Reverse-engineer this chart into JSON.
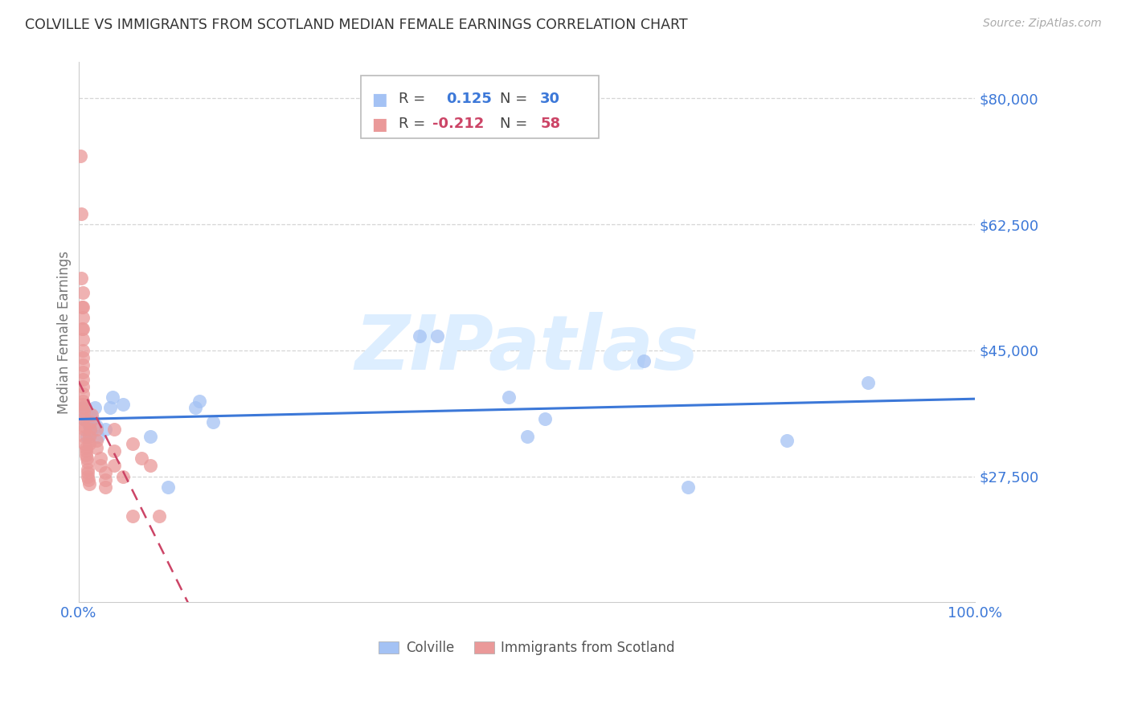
{
  "title": "COLVILLE VS IMMIGRANTS FROM SCOTLAND MEDIAN FEMALE EARNINGS CORRELATION CHART",
  "source": "Source: ZipAtlas.com",
  "ylabel": "Median Female Earnings",
  "ylim": [
    10000,
    85000
  ],
  "xlim": [
    0.0,
    1.0
  ],
  "watermark": "ZIPatlas",
  "blue_color": "#a4c2f4",
  "pink_color": "#ea9999",
  "blue_line_color": "#3c78d8",
  "pink_line_color": "#cc4466",
  "pink_line_dash": [
    6,
    4
  ],
  "colville_points": [
    [
      0.004,
      37000
    ],
    [
      0.005,
      35500
    ],
    [
      0.007,
      36500
    ],
    [
      0.009,
      33000
    ],
    [
      0.01,
      35000
    ],
    [
      0.012,
      34500
    ],
    [
      0.013,
      36000
    ],
    [
      0.014,
      33500
    ],
    [
      0.016,
      35500
    ],
    [
      0.018,
      37000
    ],
    [
      0.02,
      34500
    ],
    [
      0.022,
      33000
    ],
    [
      0.03,
      34000
    ],
    [
      0.035,
      37000
    ],
    [
      0.038,
      38500
    ],
    [
      0.05,
      37500
    ],
    [
      0.08,
      33000
    ],
    [
      0.1,
      26000
    ],
    [
      0.13,
      37000
    ],
    [
      0.135,
      38000
    ],
    [
      0.15,
      35000
    ],
    [
      0.38,
      47000
    ],
    [
      0.4,
      47000
    ],
    [
      0.48,
      38500
    ],
    [
      0.5,
      33000
    ],
    [
      0.52,
      35500
    ],
    [
      0.63,
      43500
    ],
    [
      0.68,
      26000
    ],
    [
      0.79,
      32500
    ],
    [
      0.88,
      40500
    ]
  ],
  "scotland_points": [
    [
      0.002,
      72000
    ],
    [
      0.003,
      64000
    ],
    [
      0.003,
      55000
    ],
    [
      0.004,
      51000
    ],
    [
      0.004,
      48000
    ],
    [
      0.005,
      53000
    ],
    [
      0.005,
      51000
    ],
    [
      0.005,
      49500
    ],
    [
      0.005,
      48000
    ],
    [
      0.005,
      46500
    ],
    [
      0.005,
      45000
    ],
    [
      0.005,
      44000
    ],
    [
      0.005,
      43000
    ],
    [
      0.005,
      42000
    ],
    [
      0.005,
      41000
    ],
    [
      0.005,
      40000
    ],
    [
      0.005,
      39000
    ],
    [
      0.005,
      38000
    ],
    [
      0.005,
      37500
    ],
    [
      0.006,
      37000
    ],
    [
      0.006,
      36500
    ],
    [
      0.006,
      35500
    ],
    [
      0.006,
      34500
    ],
    [
      0.007,
      34000
    ],
    [
      0.007,
      33000
    ],
    [
      0.007,
      32000
    ],
    [
      0.008,
      31500
    ],
    [
      0.008,
      31000
    ],
    [
      0.008,
      30500
    ],
    [
      0.009,
      30000
    ],
    [
      0.01,
      29500
    ],
    [
      0.01,
      28500
    ],
    [
      0.01,
      28000
    ],
    [
      0.01,
      27500
    ],
    [
      0.011,
      27000
    ],
    [
      0.012,
      26500
    ],
    [
      0.012,
      32000
    ],
    [
      0.012,
      33000
    ],
    [
      0.013,
      35000
    ],
    [
      0.013,
      34000
    ],
    [
      0.015,
      36000
    ],
    [
      0.02,
      34000
    ],
    [
      0.02,
      32500
    ],
    [
      0.02,
      31500
    ],
    [
      0.025,
      30000
    ],
    [
      0.025,
      29000
    ],
    [
      0.03,
      28000
    ],
    [
      0.03,
      27000
    ],
    [
      0.03,
      26000
    ],
    [
      0.04,
      34000
    ],
    [
      0.04,
      31000
    ],
    [
      0.04,
      29000
    ],
    [
      0.05,
      27500
    ],
    [
      0.06,
      22000
    ],
    [
      0.06,
      32000
    ],
    [
      0.07,
      30000
    ],
    [
      0.08,
      29000
    ],
    [
      0.09,
      22000
    ]
  ],
  "background_color": "#ffffff",
  "grid_color": "#cccccc",
  "title_color": "#333333",
  "label_color": "#3c78d8",
  "watermark_color": "#ddeeff"
}
